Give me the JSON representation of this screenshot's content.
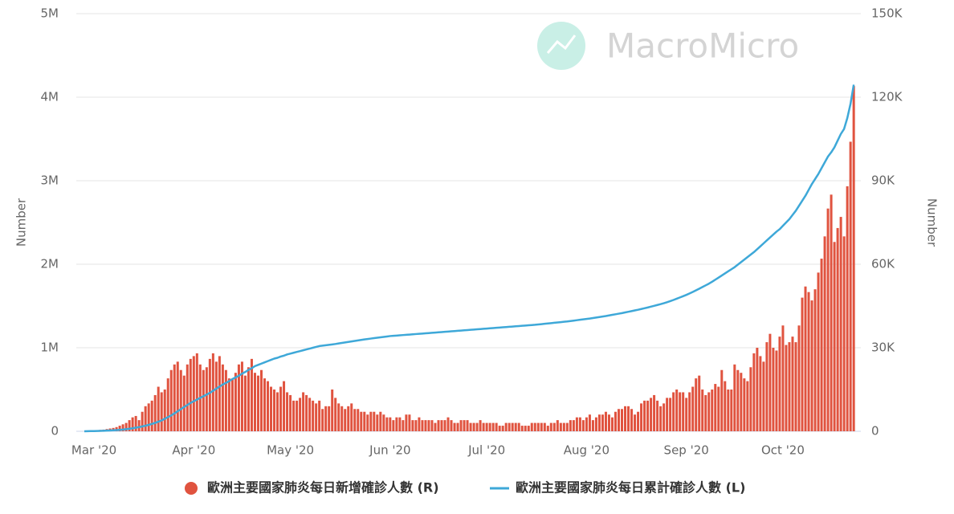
{
  "watermark": "MacroMicro",
  "chart_data": {
    "type": "bar-line",
    "y_label": "Number",
    "y2_label": "Number",
    "ylim": [
      0,
      5000000
    ],
    "yticks": [
      0,
      {
        "value": 1000000,
        "label": "1M"
      },
      {
        "value": 2000000,
        "label": "2M"
      },
      {
        "value": 3000000,
        "label": "3M"
      },
      {
        "value": 4000000,
        "label": "4M"
      },
      {
        "value": 5000000,
        "label": "5M"
      }
    ],
    "y2lim": [
      0,
      150000
    ],
    "y2ticks": [
      0,
      {
        "value": 30000,
        "label": "30K"
      },
      {
        "value": 60000,
        "label": "60K"
      },
      {
        "value": 90000,
        "label": "90K"
      },
      {
        "value": 120000,
        "label": "120K"
      },
      {
        "value": 150000,
        "label": "150K"
      }
    ],
    "grid": true,
    "categories": [
      null,
      null,
      null,
      "Mar '20",
      null,
      null,
      null,
      null,
      null,
      null,
      null,
      null,
      null,
      null,
      null,
      null,
      null,
      null,
      null,
      null,
      null,
      null,
      null,
      null,
      null,
      null,
      null,
      null,
      null,
      null,
      null,
      null,
      null,
      null,
      "Apr '20",
      null,
      null,
      null,
      null,
      null,
      null,
      null,
      null,
      null,
      null,
      null,
      null,
      null,
      null,
      null,
      null,
      null,
      null,
      null,
      null,
      null,
      null,
      null,
      null,
      null,
      null,
      null,
      null,
      null,
      "May '20",
      null,
      null,
      null,
      null,
      null,
      null,
      null,
      null,
      null,
      null,
      null,
      null,
      null,
      null,
      null,
      null,
      null,
      null,
      null,
      null,
      null,
      null,
      null,
      null,
      null,
      null,
      null,
      null,
      null,
      null,
      "Jun '20",
      null,
      null,
      null,
      null,
      null,
      null,
      null,
      null,
      null,
      null,
      null,
      null,
      null,
      null,
      null,
      null,
      null,
      null,
      null,
      null,
      null,
      null,
      null,
      null,
      null,
      null,
      null,
      null,
      null,
      "Jul '20",
      null,
      null,
      null,
      null,
      null,
      null,
      null,
      null,
      null,
      null,
      null,
      null,
      null,
      null,
      null,
      null,
      null,
      null,
      null,
      null,
      null,
      null,
      null,
      null,
      null,
      null,
      null,
      null,
      null,
      null,
      "Aug '20",
      null,
      null,
      null,
      null,
      null,
      null,
      null,
      null,
      null,
      null,
      null,
      null,
      null,
      null,
      null,
      null,
      null,
      null,
      null,
      null,
      null,
      null,
      null,
      null,
      null,
      null,
      null,
      null,
      null,
      null,
      "Sep '20",
      null,
      null,
      null,
      null,
      null,
      null,
      null,
      null,
      null,
      null,
      null,
      null,
      null,
      null,
      null,
      null,
      null,
      null,
      null,
      null,
      null,
      null,
      null,
      null,
      null,
      null,
      null,
      null,
      null,
      "Oct '20",
      null,
      null,
      null,
      null,
      null,
      null,
      null,
      null,
      null,
      null,
      null,
      null,
      null,
      null,
      null,
      null,
      null,
      null,
      null,
      null,
      null,
      null
    ],
    "series": [
      {
        "name": "歐洲主要國家肺炎每日新增確診人數 (R)",
        "type": "bar",
        "axis": "y2",
        "color": "#e0533f",
        "values": [
          0,
          0,
          200,
          300,
          400,
          500,
          600,
          800,
          1000,
          1200,
          1500,
          2000,
          2500,
          3000,
          4000,
          5000,
          5500,
          4000,
          7000,
          9000,
          10000,
          11000,
          13000,
          16000,
          14000,
          15000,
          19000,
          22000,
          24000,
          25000,
          22000,
          20000,
          24000,
          26000,
          27000,
          28000,
          24000,
          22000,
          23000,
          26000,
          28000,
          25000,
          27000,
          24000,
          22000,
          19000,
          19000,
          21000,
          24000,
          25000,
          20000,
          23000,
          26000,
          21000,
          20000,
          22000,
          19000,
          18000,
          16000,
          15000,
          14000,
          16000,
          18000,
          14000,
          13000,
          11000,
          11000,
          12000,
          14000,
          13000,
          12000,
          11000,
          10000,
          11000,
          8000,
          9000,
          9000,
          15000,
          12000,
          10000,
          9000,
          8000,
          9000,
          10000,
          8000,
          8000,
          7000,
          7000,
          6000,
          7000,
          7000,
          6000,
          7000,
          6000,
          5000,
          5000,
          4000,
          5000,
          5000,
          4000,
          6000,
          6000,
          4000,
          4000,
          5000,
          4000,
          4000,
          4000,
          4000,
          3000,
          4000,
          4000,
          4000,
          5000,
          4000,
          3000,
          3000,
          4000,
          4000,
          4000,
          3000,
          3000,
          3000,
          4000,
          3000,
          3000,
          3000,
          3000,
          3000,
          2000,
          2000,
          3000,
          3000,
          3000,
          3000,
          3000,
          2000,
          2000,
          2000,
          3000,
          3000,
          3000,
          3000,
          3000,
          2000,
          3000,
          3000,
          4000,
          3000,
          3000,
          3000,
          4000,
          4000,
          5000,
          5000,
          4000,
          5000,
          6000,
          4000,
          5000,
          6000,
          6000,
          7000,
          6000,
          5000,
          7000,
          8000,
          8000,
          9000,
          9000,
          8000,
          6000,
          7000,
          10000,
          11000,
          11000,
          12000,
          13000,
          11000,
          9000,
          10000,
          12000,
          12000,
          14000,
          15000,
          14000,
          14000,
          12000,
          14000,
          16000,
          19000,
          20000,
          15000,
          13000,
          14000,
          15000,
          17000,
          16000,
          22000,
          18000,
          15000,
          15000,
          24000,
          22000,
          21000,
          19000,
          18000,
          23000,
          28000,
          30000,
          27000,
          25000,
          32000,
          35000,
          30000,
          29000,
          34000,
          38000,
          31000,
          32000,
          34000,
          32000,
          38000,
          48000,
          52000,
          50000,
          47000,
          51000,
          57000,
          62000,
          70000,
          80000,
          85000,
          68000,
          73000,
          77000,
          70000,
          88000,
          104000,
          124000
        ]
      },
      {
        "name": "歐洲主要國家肺炎每日累計確診人數 (L)",
        "type": "line",
        "axis": "y",
        "color": "#3ea8d8",
        "values": [
          0,
          1000,
          2000,
          3000,
          4000,
          5000,
          6000,
          8000,
          10000,
          12000,
          14000,
          17000,
          20000,
          25000,
          30000,
          36000,
          43000,
          50000,
          58000,
          67000,
          77000,
          88000,
          100000,
          115000,
          130000,
          150000,
          170000,
          190000,
          215000,
          240000,
          265000,
          290000,
          315000,
          340000,
          360000,
          380000,
          400000,
          420000,
          440000,
          460000,
          485000,
          510000,
          535000,
          560000,
          580000,
          600000,
          625000,
          645000,
          665000,
          690000,
          710000,
          735000,
          755000,
          780000,
          795000,
          810000,
          825000,
          840000,
          855000,
          870000,
          880000,
          895000,
          905000,
          920000,
          930000,
          940000,
          950000,
          960000,
          970000,
          980000,
          990000,
          1000000,
          1010000,
          1020000,
          1025000,
          1030000,
          1035000,
          1040000,
          1045000,
          1052000,
          1058000,
          1064000,
          1070000,
          1076000,
          1082000,
          1088000,
          1094000,
          1100000,
          1105000,
          1110000,
          1115000,
          1120000,
          1125000,
          1130000,
          1135000,
          1140000,
          1143000,
          1146000,
          1149000,
          1152000,
          1155000,
          1158000,
          1161000,
          1164000,
          1167000,
          1170000,
          1173000,
          1176000,
          1179000,
          1182000,
          1185000,
          1188000,
          1191000,
          1194000,
          1197000,
          1200000,
          1203000,
          1206000,
          1209000,
          1212000,
          1215000,
          1218000,
          1221000,
          1224000,
          1227000,
          1230000,
          1233000,
          1236000,
          1239000,
          1242000,
          1245000,
          1248000,
          1251000,
          1254000,
          1257000,
          1260000,
          1263000,
          1266000,
          1269000,
          1272000,
          1275000,
          1279000,
          1283000,
          1287000,
          1291000,
          1295000,
          1299000,
          1303000,
          1307000,
          1311000,
          1315000,
          1320000,
          1325000,
          1330000,
          1335000,
          1340000,
          1345000,
          1350000,
          1356000,
          1362000,
          1368000,
          1374000,
          1380000,
          1387000,
          1394000,
          1401000,
          1408000,
          1415000,
          1423000,
          1431000,
          1439000,
          1447000,
          1455000,
          1464000,
          1473000,
          1482000,
          1492000,
          1502000,
          1512000,
          1522000,
          1533000,
          1545000,
          1558000,
          1572000,
          1587000,
          1602000,
          1617000,
          1633000,
          1650000,
          1668000,
          1687000,
          1707000,
          1727000,
          1747000,
          1767000,
          1790000,
          1815000,
          1840000,
          1865000,
          1890000,
          1915000,
          1940000,
          1965000,
          1995000,
          2025000,
          2055000,
          2085000,
          2115000,
          2145000,
          2180000,
          2215000,
          2250000,
          2285000,
          2320000,
          2355000,
          2390000,
          2420000,
          2460000,
          2500000,
          2540000,
          2590000,
          2640000,
          2700000,
          2760000,
          2820000,
          2890000,
          2960000,
          3020000,
          3080000,
          3150000,
          3220000,
          3290000,
          3340000,
          3400000,
          3480000,
          3560000,
          3620000,
          3750000,
          3920000,
          4150000
        ]
      }
    ]
  }
}
